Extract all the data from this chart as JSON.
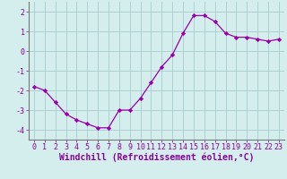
{
  "x": [
    0,
    1,
    2,
    3,
    4,
    5,
    6,
    7,
    8,
    9,
    10,
    11,
    12,
    13,
    14,
    15,
    16,
    17,
    18,
    19,
    20,
    21,
    22,
    23
  ],
  "y": [
    -1.8,
    -2.0,
    -2.6,
    -3.2,
    -3.5,
    -3.7,
    -3.9,
    -3.9,
    -3.0,
    -3.0,
    -2.4,
    -1.6,
    -0.8,
    -0.2,
    0.9,
    1.8,
    1.8,
    1.5,
    0.9,
    0.7,
    0.7,
    0.6,
    0.5,
    0.6
  ],
  "line_color": "#9900aa",
  "marker": "D",
  "marker_size": 2.2,
  "xlabel": "Windchill (Refroidissement éolien,°C)",
  "xlabel_fontsize": 7,
  "ylim": [
    -4.5,
    2.5
  ],
  "xlim": [
    -0.5,
    23.5
  ],
  "yticks": [
    -4,
    -3,
    -2,
    -1,
    0,
    1,
    2
  ],
  "xticks": [
    0,
    1,
    2,
    3,
    4,
    5,
    6,
    7,
    8,
    9,
    10,
    11,
    12,
    13,
    14,
    15,
    16,
    17,
    18,
    19,
    20,
    21,
    22,
    23
  ],
  "tick_fontsize": 6,
  "background_color": "#d4eeee",
  "grid_color": "#aacccc",
  "axes_color": "#880099",
  "spine_color": "#777777"
}
